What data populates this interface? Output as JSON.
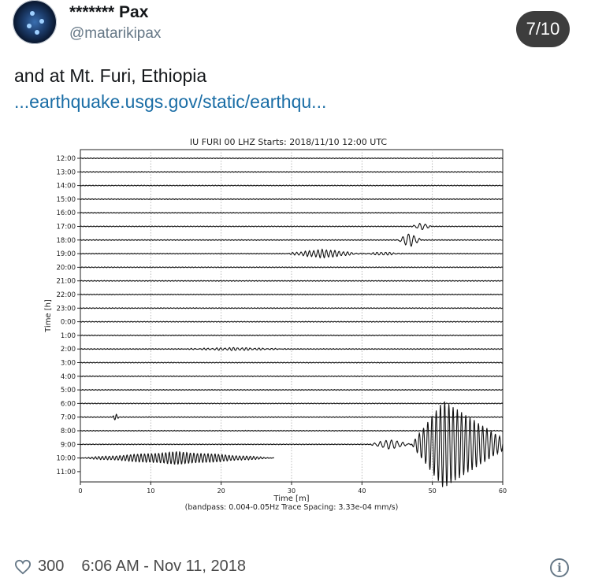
{
  "tweet": {
    "display_name": "******* Pax",
    "handle": "@matarikipax",
    "counter": "7/10",
    "text": "and at Mt. Furi, Ethiopia",
    "link": "...earthquake.usgs.gov/static/earthqu...",
    "likes": "300",
    "timestamp": "6:06 AM - Nov 11, 2018"
  },
  "icons": {
    "like": "heart-icon",
    "info": "info-icon",
    "avatar": "avatar-image"
  },
  "colors": {
    "link": "#1b6ea6",
    "badge": "#3d3d3d",
    "secondary": "#657786"
  },
  "chart_data": {
    "type": "line",
    "title": "IU FURI 00 LHZ  Starts: 2018/11/10 12:00 UTC",
    "xlabel": "Time [m]",
    "x_note": "(bandpass: 0.004-0.05Hz  Trace Spacing: 3.33e-04 mm/s)",
    "ylabel": "Time [h]",
    "xlim": [
      0,
      60
    ],
    "x_ticks": [
      "0",
      "10",
      "20",
      "30",
      "40",
      "50",
      "60"
    ],
    "y_ticks": [
      "12:00",
      "13:00",
      "14:00",
      "15:00",
      "16:00",
      "17:00",
      "18:00",
      "19:00",
      "20:00",
      "21:00",
      "22:00",
      "23:00",
      "0:00",
      "1:00",
      "2:00",
      "3:00",
      "4:00",
      "5:00",
      "6:00",
      "7:00",
      "8:00",
      "9:00",
      "10:00",
      "11:00"
    ],
    "grid": "vertical dotted",
    "trace_end_minutes": {
      "10:00": 27.5,
      "11:00": 0
    },
    "events": [
      {
        "trace": "17:00",
        "start": 47,
        "end": 50,
        "amp": 0.25,
        "period": 0.8
      },
      {
        "trace": "18:00",
        "start": 45,
        "end": 48.5,
        "amp": 0.5,
        "period": 0.8
      },
      {
        "trace": "19:00",
        "start": 29,
        "end": 40,
        "amp": 0.3,
        "period": 0.6
      },
      {
        "trace": "19:00",
        "start": 40,
        "end": 46,
        "amp": 0.12,
        "period": 0.6
      },
      {
        "trace": "9:00",
        "start": 41,
        "end": 47,
        "amp": 0.35,
        "period": 0.8
      },
      {
        "trace": "9:00",
        "start": 47,
        "end": 60,
        "amp": 3.2,
        "period": 0.6
      },
      {
        "trace": "10:00",
        "start": 0,
        "end": 27.5,
        "amp": 0.45,
        "period": 0.5
      },
      {
        "trace": "7:00",
        "start": 4.5,
        "end": 5.5,
        "amp": 0.25,
        "period": 0.5
      },
      {
        "trace": "2:00",
        "start": 14,
        "end": 30,
        "amp": 0.1,
        "period": 0.6
      }
    ]
  }
}
